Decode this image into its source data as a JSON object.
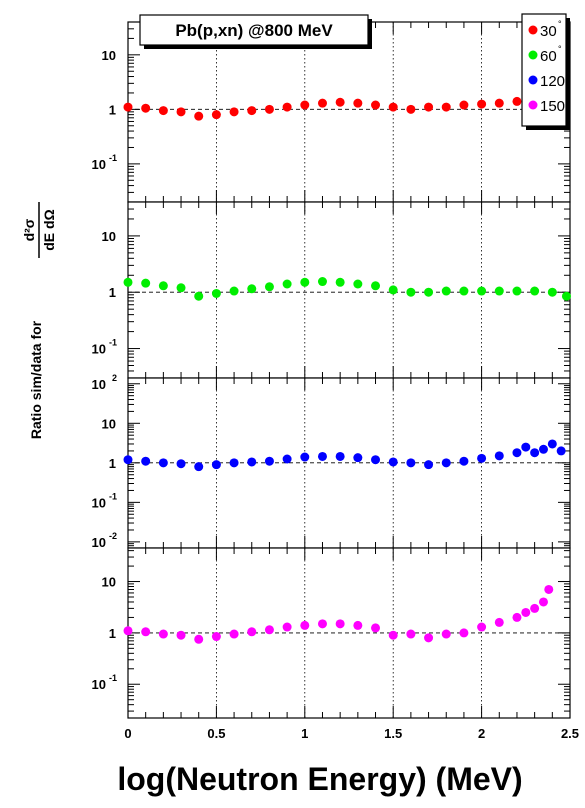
{
  "title_box": "Pb(p,xn) @800 MeV",
  "xlabel": "log(Neutron Energy) (MeV)",
  "ylabel": {
    "prefix": "Ratio sim/data for",
    "fraction_numerator": "d²σ",
    "fraction_denominator": "dE dΩ"
  },
  "legend": [
    {
      "label": "30",
      "degree_mark": "°",
      "color": "#ff0000"
    },
    {
      "label": "60",
      "degree_mark": "°",
      "color": "#00ee00"
    },
    {
      "label": "120",
      "degree_mark": "°",
      "color": "#0000ff"
    },
    {
      "label": "150",
      "degree_mark": "°",
      "color": "#ff00ff"
    }
  ],
  "x_ticks": [
    "0",
    "0.5",
    "1",
    "1.5",
    "2",
    "2.5"
  ],
  "chart_data": [
    {
      "type": "scatter",
      "series_name": "30°",
      "color": "#ff0000",
      "xlim": [
        0,
        2.5
      ],
      "ylim": [
        0.02,
        40
      ],
      "yscale": "log",
      "y_tick_labels": [
        {
          "v": 10,
          "t": "10"
        },
        {
          "v": 1,
          "t": "1"
        },
        {
          "v": 0.1,
          "t": "10",
          "sup": "-1"
        }
      ],
      "x": [
        0.0,
        0.1,
        0.2,
        0.3,
        0.4,
        0.5,
        0.6,
        0.7,
        0.8,
        0.9,
        1.0,
        1.1,
        1.2,
        1.3,
        1.4,
        1.5,
        1.6,
        1.7,
        1.8,
        1.9,
        2.0,
        2.1,
        2.2,
        2.3,
        2.4,
        2.45
      ],
      "y": [
        1.1,
        1.05,
        0.95,
        0.9,
        0.75,
        0.8,
        0.9,
        0.95,
        1.0,
        1.1,
        1.2,
        1.3,
        1.35,
        1.3,
        1.2,
        1.1,
        1.0,
        1.1,
        1.1,
        1.2,
        1.25,
        1.3,
        1.4,
        1.45,
        1.5,
        1.55
      ],
      "reference_line": 1
    },
    {
      "type": "scatter",
      "series_name": "60°",
      "color": "#00ee00",
      "xlim": [
        0,
        2.5
      ],
      "ylim": [
        0.03,
        40
      ],
      "yscale": "log",
      "y_tick_labels": [
        {
          "v": 10,
          "t": "10"
        },
        {
          "v": 1,
          "t": "1"
        },
        {
          "v": 0.1,
          "t": "10",
          "sup": "-1"
        }
      ],
      "x": [
        0.0,
        0.1,
        0.2,
        0.3,
        0.4,
        0.5,
        0.6,
        0.7,
        0.8,
        0.9,
        1.0,
        1.1,
        1.2,
        1.3,
        1.4,
        1.5,
        1.6,
        1.7,
        1.8,
        1.9,
        2.0,
        2.1,
        2.2,
        2.3,
        2.4,
        2.48
      ],
      "y": [
        1.5,
        1.45,
        1.3,
        1.2,
        0.85,
        0.95,
        1.05,
        1.15,
        1.25,
        1.4,
        1.5,
        1.55,
        1.5,
        1.4,
        1.3,
        1.1,
        1.0,
        1.0,
        1.05,
        1.05,
        1.05,
        1.05,
        1.05,
        1.05,
        1.0,
        0.85
      ],
      "reference_line": 1
    },
    {
      "type": "scatter",
      "series_name": "120°",
      "color": "#0000ff",
      "xlim": [
        0,
        2.5
      ],
      "ylim": [
        0.007,
        140
      ],
      "yscale": "log",
      "y_tick_labels": [
        {
          "v": 100,
          "t": "10",
          "sup": "2"
        },
        {
          "v": 10,
          "t": "10"
        },
        {
          "v": 1,
          "t": "1"
        },
        {
          "v": 0.1,
          "t": "10",
          "sup": "-1"
        },
        {
          "v": 0.01,
          "t": "10",
          "sup": "-2"
        }
      ],
      "x": [
        0.0,
        0.1,
        0.2,
        0.3,
        0.4,
        0.5,
        0.6,
        0.7,
        0.8,
        0.9,
        1.0,
        1.1,
        1.2,
        1.3,
        1.4,
        1.5,
        1.6,
        1.7,
        1.8,
        1.9,
        2.0,
        2.1,
        2.2,
        2.25,
        2.3,
        2.35,
        2.4,
        2.45
      ],
      "y": [
        1.2,
        1.1,
        1.0,
        0.95,
        0.8,
        0.9,
        1.0,
        1.05,
        1.1,
        1.25,
        1.4,
        1.45,
        1.45,
        1.35,
        1.2,
        1.05,
        1.0,
        0.9,
        1.0,
        1.1,
        1.3,
        1.5,
        1.8,
        2.5,
        1.8,
        2.2,
        3.0,
        2.0
      ],
      "reference_line": 1
    },
    {
      "type": "scatter",
      "series_name": "150°",
      "color": "#ff00ff",
      "xlim": [
        0,
        2.5
      ],
      "ylim": [
        0.022,
        45
      ],
      "yscale": "log",
      "y_tick_labels": [
        {
          "v": 10,
          "t": "10"
        },
        {
          "v": 1,
          "t": "1"
        },
        {
          "v": 0.1,
          "t": "10",
          "sup": "-1"
        }
      ],
      "x": [
        0.0,
        0.1,
        0.2,
        0.3,
        0.4,
        0.5,
        0.6,
        0.7,
        0.8,
        0.9,
        1.0,
        1.1,
        1.2,
        1.3,
        1.4,
        1.5,
        1.6,
        1.7,
        1.8,
        1.9,
        2.0,
        2.1,
        2.2,
        2.25,
        2.3,
        2.35,
        2.38
      ],
      "y": [
        1.1,
        1.05,
        0.95,
        0.9,
        0.75,
        0.85,
        0.95,
        1.05,
        1.15,
        1.3,
        1.4,
        1.5,
        1.5,
        1.4,
        1.25,
        0.9,
        0.95,
        0.8,
        0.95,
        1.0,
        1.3,
        1.6,
        2.0,
        2.5,
        3.0,
        4.0,
        7.0
      ],
      "reference_line": 1
    }
  ]
}
